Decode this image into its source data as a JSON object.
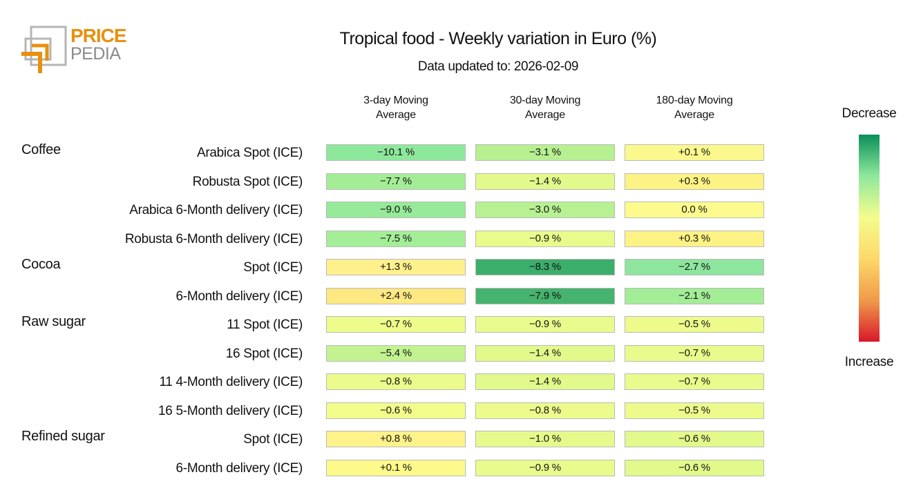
{
  "logo": {
    "top": "PRICE",
    "bottom": "PEDIA"
  },
  "chart_data": {
    "type": "heatmap",
    "title": "Tropical food - Weekly variation in Euro (%)",
    "subtitle": "Data updated to: 2026-02-09",
    "columns": [
      "3-day Moving Average",
      "30-day Moving Average",
      "180-day Moving Average"
    ],
    "legend": {
      "top": "Decrease",
      "bottom": "Increase",
      "colors": [
        "#0a8f5a",
        "#8fe89c",
        "#f4fd8c",
        "#fdd86a",
        "#f09a4a",
        "#d7192a"
      ]
    },
    "groups": [
      {
        "name": "Coffee",
        "rows": [
          {
            "name": "Arabica Spot (ICE)",
            "values": [
              -10.1,
              -3.1,
              0.1
            ],
            "value_labels": [
              "−10.1 %",
              "−3.1 %",
              "+0.1 %"
            ],
            "colors": [
              "#8ee89c",
              "#b6f091",
              "#fbf88d"
            ]
          },
          {
            "name": "Robusta Spot (ICE)",
            "values": [
              -7.7,
              -1.4,
              0.3
            ],
            "value_labels": [
              "−7.7 %",
              "−1.4 %",
              "+0.3 %"
            ],
            "colors": [
              "#a3ed97",
              "#e2f98c",
              "#fdf385"
            ]
          },
          {
            "name": "Arabica 6-Month delivery (ICE)",
            "values": [
              -9.0,
              -3.0,
              0.0
            ],
            "value_labels": [
              "−9.0 %",
              "−3.0 %",
              "0.0 %"
            ],
            "colors": [
              "#97ea99",
              "#b8f192",
              "#fdfb8d"
            ]
          },
          {
            "name": "Robusta 6-Month delivery (ICE)",
            "values": [
              -7.5,
              -0.9,
              0.3
            ],
            "value_labels": [
              "−7.5 %",
              "−0.9 %",
              "+0.3 %"
            ],
            "colors": [
              "#a4ee97",
              "#e9fb8c",
              "#fdf385"
            ]
          }
        ]
      },
      {
        "name": "Cocoa",
        "rows": [
          {
            "name": "Spot (ICE)",
            "values": [
              1.3,
              -8.3,
              -2.7
            ],
            "value_labels": [
              "+1.3 %",
              "−8.3 %",
              "−2.7 %"
            ],
            "colors": [
              "#fef08c",
              "#3cae6b",
              "#8de59e"
            ]
          },
          {
            "name": "6-Month delivery (ICE)",
            "values": [
              2.4,
              -7.9,
              -2.1
            ],
            "value_labels": [
              "+2.4 %",
              "−7.9 %",
              "−2.1 %"
            ],
            "colors": [
              "#fde882",
              "#46b36e",
              "#a3ed97"
            ]
          }
        ]
      },
      {
        "name": "Raw sugar",
        "rows": [
          {
            "name": "11 Spot (ICE)",
            "values": [
              -0.7,
              -0.9,
              -0.5
            ],
            "value_labels": [
              "−0.7 %",
              "−0.9 %",
              "−0.5 %"
            ],
            "colors": [
              "#eefc8c",
              "#e9fb8c",
              "#ecfb8c"
            ]
          },
          {
            "name": "16 Spot (ICE)",
            "values": [
              -5.4,
              -1.4,
              -0.7
            ],
            "value_labels": [
              "−5.4 %",
              "−1.4 %",
              "−0.7 %"
            ],
            "colors": [
              "#c3f390",
              "#e2f98c",
              "#e9fb8c"
            ]
          },
          {
            "name": "11 4-Month delivery (ICE)",
            "values": [
              -0.8,
              -1.4,
              -0.7
            ],
            "value_labels": [
              "−0.8 %",
              "−1.4 %",
              "−0.7 %"
            ],
            "colors": [
              "#ecfb8c",
              "#e2f98c",
              "#e9fb8c"
            ]
          },
          {
            "name": "16 5-Month delivery (ICE)",
            "values": [
              -0.6,
              -0.8,
              -0.5
            ],
            "value_labels": [
              "−0.6 %",
              "−0.8 %",
              "−0.5 %"
            ],
            "colors": [
              "#f2fd8c",
              "#ecfb8c",
              "#ecfb8c"
            ]
          }
        ]
      },
      {
        "name": "Refined sugar",
        "rows": [
          {
            "name": "Spot (ICE)",
            "values": [
              0.8,
              -1.0,
              -0.6
            ],
            "value_labels": [
              "+0.8 %",
              "−1.0 %",
              "−0.6 %"
            ],
            "colors": [
              "#fef28a",
              "#e6fa8c",
              "#e2f98c"
            ]
          },
          {
            "name": "6-Month delivery (ICE)",
            "values": [
              0.1,
              -0.9,
              -0.6
            ],
            "value_labels": [
              "+0.1 %",
              "−0.9 %",
              "−0.6 %"
            ],
            "colors": [
              "#fdfa8b",
              "#e9fb8c",
              "#e2f98c"
            ]
          }
        ]
      }
    ]
  }
}
